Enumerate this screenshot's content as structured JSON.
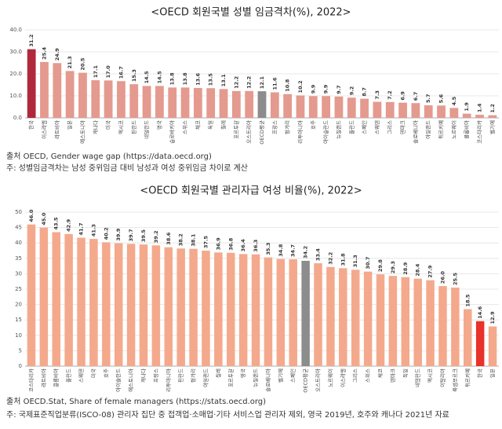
{
  "chart_data": [
    {
      "type": "bar",
      "title": "<OECD 회원국별 성별 임금격차(%), 2022>",
      "categories": [
        "한국",
        "이스라엘",
        "라트비아",
        "일본",
        "에스토니아",
        "캐나다",
        "미국",
        "멕시코",
        "핀란드",
        "네덜란드",
        "영국",
        "슬로바키아",
        "스위스",
        "체코",
        "독일",
        "칠레",
        "포르투갈",
        "오스트리아",
        "OECD평균",
        "프랑스",
        "헝가리",
        "리투아니아",
        "호주",
        "아이슬란드",
        "뉴질랜드",
        "폴란드",
        "스페인",
        "스웨덴",
        "그리스",
        "덴마크",
        "슬로베니아",
        "아일랜드",
        "튀르키예",
        "노르웨이",
        "콜롬비아",
        "코스타리카",
        "벨기에"
      ],
      "values": [
        31.2,
        25.4,
        24.9,
        21.3,
        20.5,
        17.1,
        17.0,
        16.7,
        15.3,
        14.5,
        14.5,
        13.8,
        13.8,
        13.6,
        13.5,
        13.1,
        12.2,
        12.2,
        12.1,
        11.6,
        10.8,
        10.2,
        9.9,
        9.9,
        9.7,
        9.2,
        8.7,
        7.3,
        7.2,
        6.9,
        6.7,
        5.7,
        5.6,
        4.5,
        1.9,
        1.4,
        1.2
      ],
      "value_labels": [
        "31.2",
        "25.4",
        "24.9",
        "21.3",
        "20.5",
        "17.1",
        "17.0",
        "16.7",
        "15.3",
        "14.5",
        "14.5",
        "13.8",
        "13.8",
        "13.6",
        "13.5",
        "13.1",
        "12.2",
        "12.2",
        "12.1",
        "11.6",
        "10.8",
        "10.2",
        "9.9",
        "9.9",
        "9.7",
        "9.2",
        "8.7",
        "7.3",
        "7.2",
        "6.9",
        "6.7",
        "5.7",
        "5.6",
        "4.5",
        "1.9",
        "1.4",
        "1.2"
      ],
      "colors": [
        "#b0283c",
        "#e49a8e",
        "#e49a8e",
        "#e49a8e",
        "#e49a8e",
        "#e49a8e",
        "#e49a8e",
        "#e49a8e",
        "#e49a8e",
        "#e49a8e",
        "#e49a8e",
        "#e49a8e",
        "#e49a8e",
        "#e49a8e",
        "#e49a8e",
        "#e49a8e",
        "#e49a8e",
        "#e49a8e",
        "#8c8c8c",
        "#e49a8e",
        "#e49a8e",
        "#e49a8e",
        "#e49a8e",
        "#e49a8e",
        "#e49a8e",
        "#e49a8e",
        "#e49a8e",
        "#e49a8e",
        "#e49a8e",
        "#e49a8e",
        "#e49a8e",
        "#e49a8e",
        "#e49a8e",
        "#e49a8e",
        "#e49a8e",
        "#e49a8e",
        "#e49a8e"
      ],
      "ylim": [
        0,
        40
      ],
      "yticks": [
        {
          "value": 0,
          "label": "0.0"
        },
        {
          "value": 10,
          "label": "10.0"
        },
        {
          "value": 20,
          "label": "20.0"
        },
        {
          "value": 30,
          "label": "30.0"
        },
        {
          "value": 40,
          "label": "40.0"
        }
      ],
      "grid": true,
      "notes": [
        "출처 OECD, Gender wage gap (https://data.oecd.org)",
        "주: 성별임금격차는 남성 중위임금 대비 남성과 여성 중위임금 차이로 계산"
      ]
    },
    {
      "type": "bar",
      "title": "<OECD 회원국별 관리자급 여성 비율(%), 2022>",
      "categories": [
        "코스타리카",
        "라트비아",
        "콜롬비아",
        "폴란드",
        "스웨덴",
        "미국",
        "호주",
        "아이슬란드",
        "에스토니아",
        "캐나다",
        "프랑스",
        "리투아니아",
        "핀란드",
        "헝가리",
        "아일랜드",
        "칠레",
        "포르투갈",
        "영국",
        "뉴질랜드",
        "슬로베니아",
        "벨기에",
        "스페인",
        "OECD평균",
        "오스트리아",
        "노르웨이",
        "이스라엘",
        "그리스",
        "스위스",
        "체코",
        "덴마크",
        "독일",
        "네덜란드",
        "멕시코",
        "이탈리아",
        "룩셈부르크",
        "튀르키예",
        "한국",
        "일본"
      ],
      "values": [
        46.0,
        45.0,
        43.5,
        42.9,
        41.7,
        41.3,
        40.2,
        39.9,
        39.7,
        39.5,
        39.2,
        38.6,
        38.2,
        38.1,
        37.5,
        36.9,
        36.8,
        36.4,
        36.3,
        35.3,
        34.8,
        34.7,
        34.2,
        33.4,
        32.2,
        31.8,
        31.3,
        30.7,
        29.8,
        29.3,
        28.9,
        28.4,
        27.9,
        26.0,
        25.5,
        18.5,
        14.6,
        12.9
      ],
      "value_labels": [
        "46.0",
        "45.0",
        "43.5",
        "42.9",
        "41.7",
        "41.3",
        "40.2",
        "39.9",
        "39.7",
        "39.5",
        "39.2",
        "38.6",
        "38.2",
        "38.1",
        "37.5",
        "36.9",
        "36.8",
        "36.4",
        "36.3",
        "35.3",
        "34.8",
        "34.7",
        "34.2",
        "33.4",
        "32.2",
        "31.8",
        "31.3",
        "30.7",
        "29.8",
        "29.3",
        "28.9",
        "28.4",
        "27.9",
        "26.0",
        "25.5",
        "18.5",
        "14.6",
        "12.9"
      ],
      "colors": [
        "#f4a98c",
        "#f4a98c",
        "#f4a98c",
        "#f4a98c",
        "#f4a98c",
        "#f4a98c",
        "#f4a98c",
        "#f4a98c",
        "#f4a98c",
        "#f4a98c",
        "#f4a98c",
        "#f4a98c",
        "#f4a98c",
        "#f4a98c",
        "#f4a98c",
        "#f4a98c",
        "#f4a98c",
        "#f4a98c",
        "#f4a98c",
        "#f4a98c",
        "#f4a98c",
        "#f4a98c",
        "#8c8c8c",
        "#f4a98c",
        "#f4a98c",
        "#f4a98c",
        "#f4a98c",
        "#f4a98c",
        "#f4a98c",
        "#f4a98c",
        "#f4a98c",
        "#f4a98c",
        "#f4a98c",
        "#f4a98c",
        "#f4a98c",
        "#f4a98c",
        "#e8322a",
        "#f4a98c"
      ],
      "ylim": [
        0,
        50
      ],
      "yticks": [
        0,
        5,
        10,
        15,
        20,
        25,
        30,
        35,
        40,
        45,
        50
      ],
      "grid": true,
      "notes": [
        "출처 OECD.Stat, Share of female managers (https://stats.oecd.org)",
        "주: 국제표준직업분류(ISCO-08) 관리자 집단 중 접객업·소매업·기타 서비스업 관리자 제외, 영국 2019년, 호주와 캐나다 2021년 자료"
      ]
    }
  ]
}
